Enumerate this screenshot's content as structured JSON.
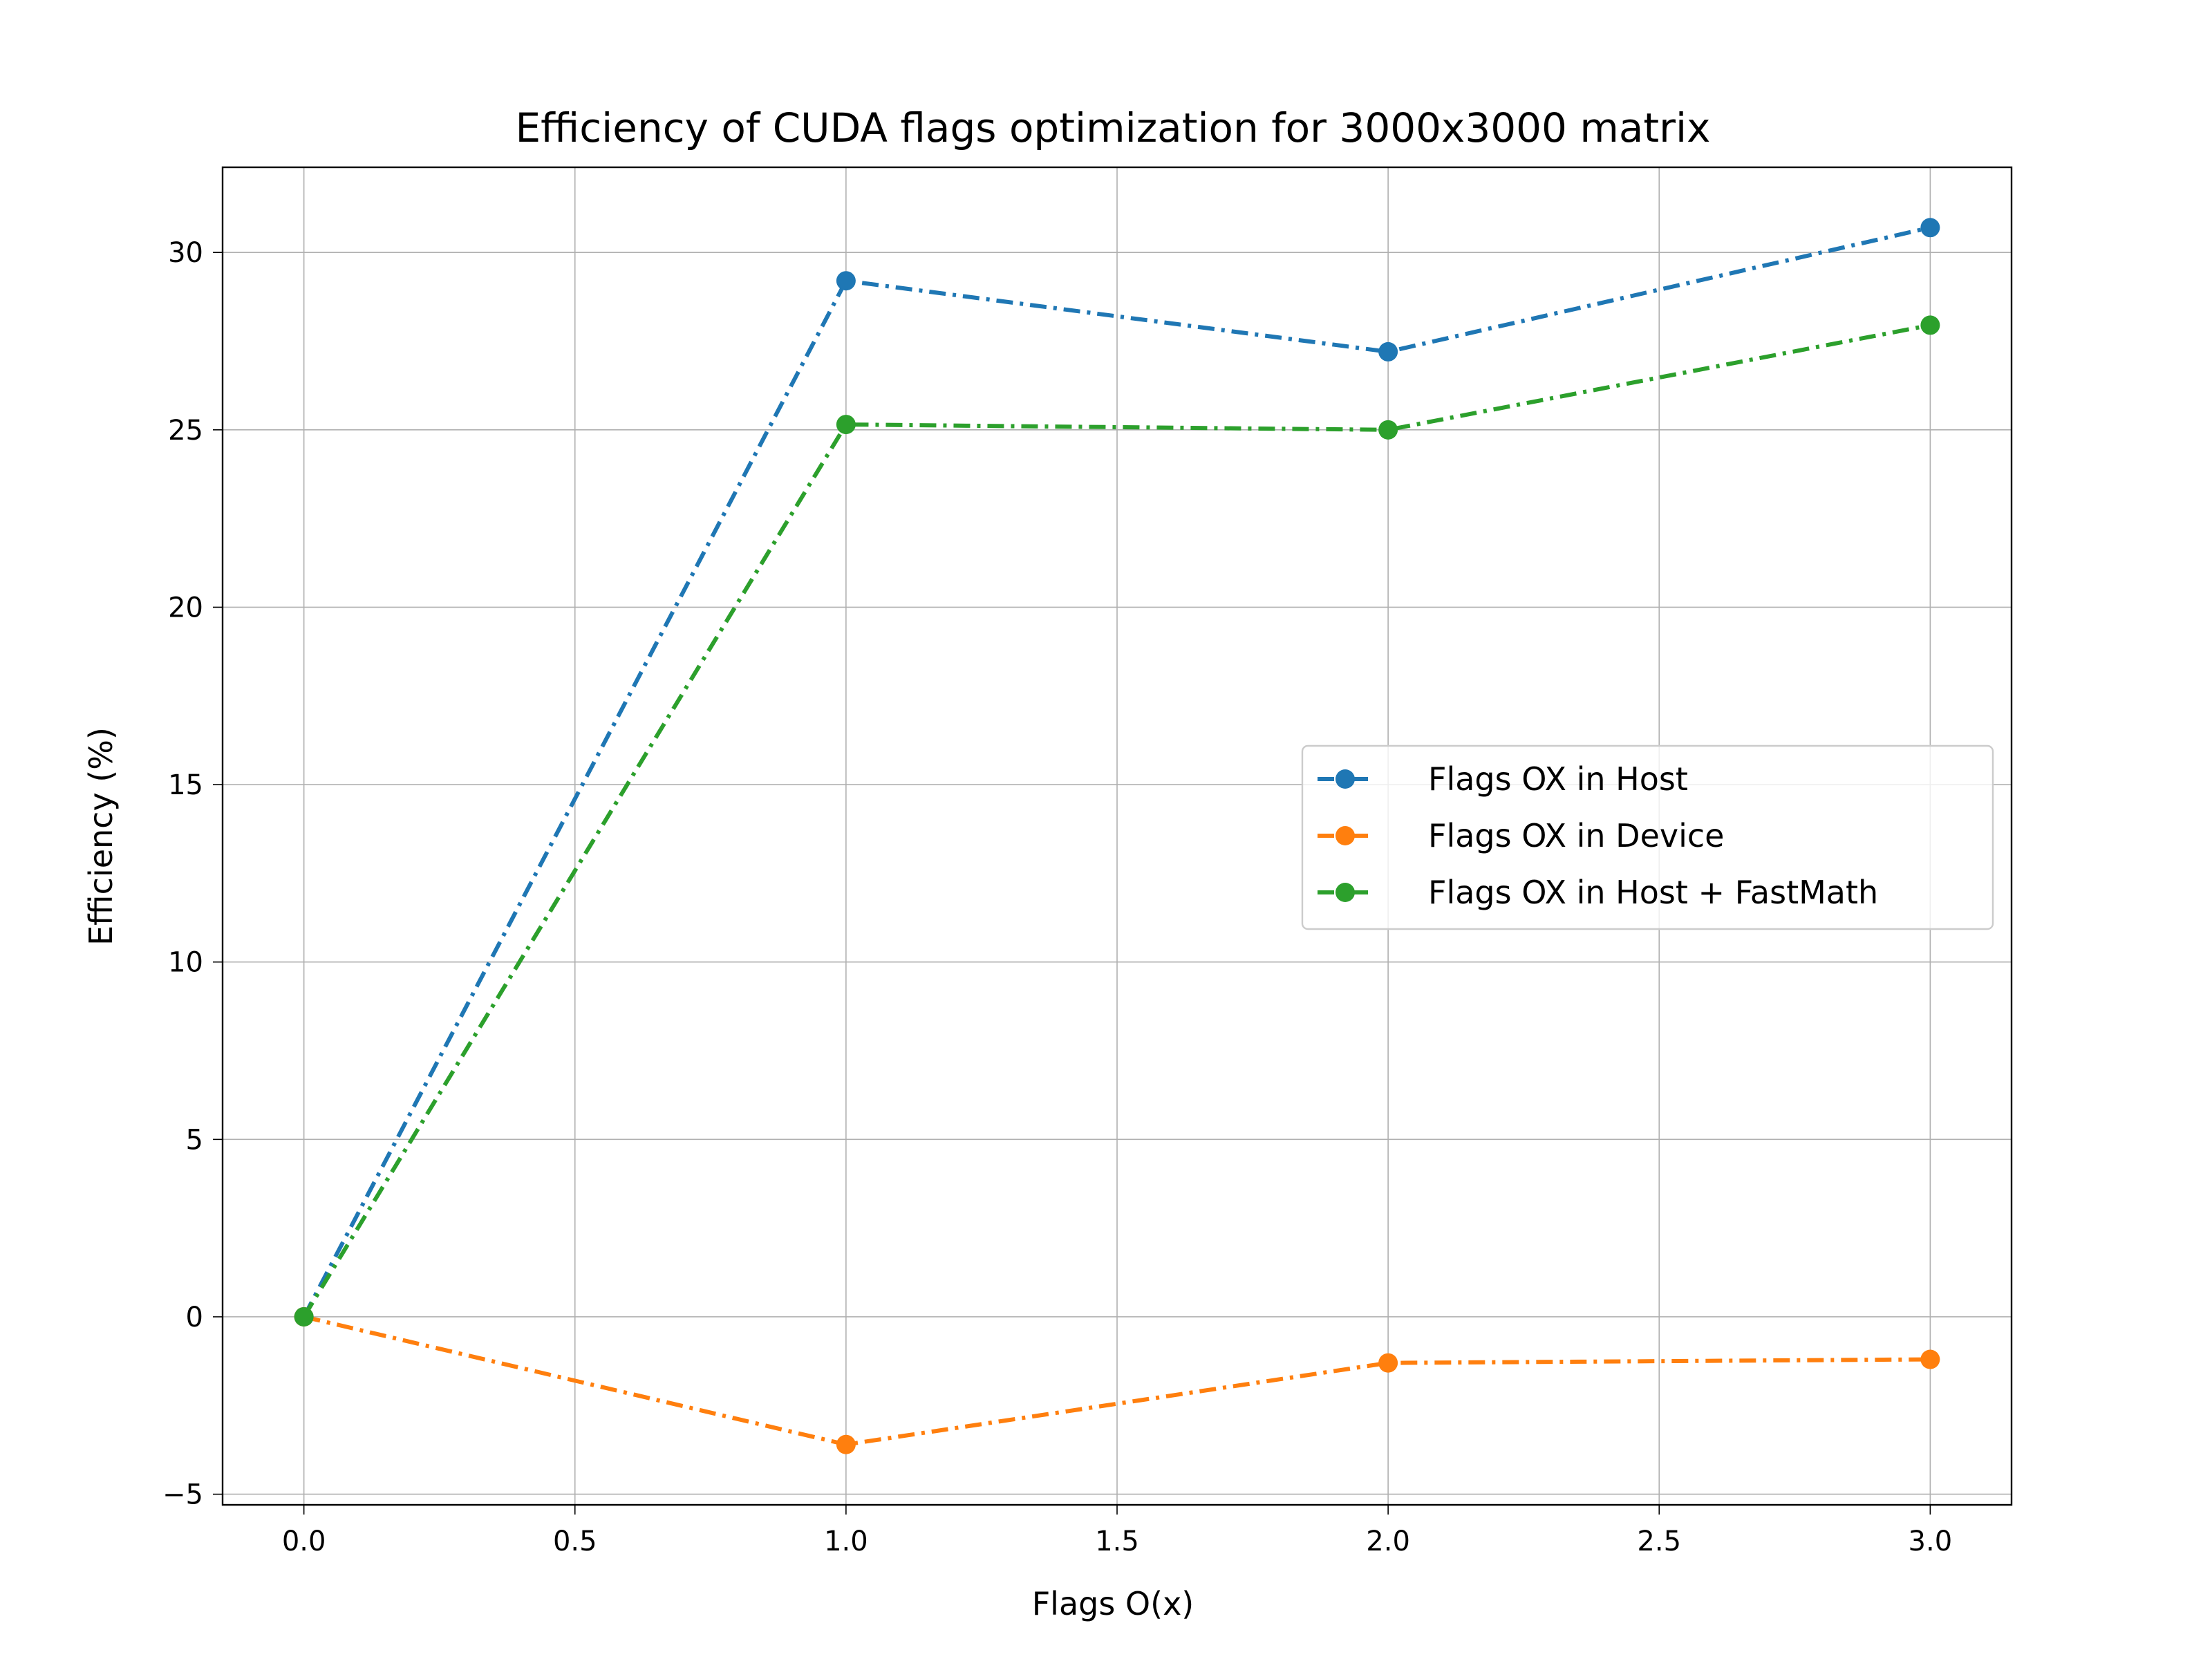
{
  "chart_data": {
    "type": "line",
    "title": "Efficiency of CUDA flags optimization for 3000x3000 matrix",
    "xlabel": "Flags O(x)",
    "ylabel": "Efficiency (%)",
    "x": [
      0.0,
      1.0,
      2.0,
      3.0
    ],
    "xlim": [
      -0.15,
      3.15
    ],
    "ylim": [
      -5.3,
      32.4
    ],
    "xticks": [
      0.0,
      0.5,
      1.0,
      1.5,
      2.0,
      2.5,
      3.0
    ],
    "xtick_labels": [
      "0.0",
      "0.5",
      "1.0",
      "1.5",
      "2.0",
      "2.5",
      "3.0"
    ],
    "yticks": [
      -5,
      0,
      5,
      10,
      15,
      20,
      25,
      30
    ],
    "ytick_labels": [
      "−5",
      "0",
      "5",
      "10",
      "15",
      "20",
      "25",
      "30"
    ],
    "grid": true,
    "legend_position": "center-right",
    "line_style": "dash-dot",
    "series": [
      {
        "name": "Flags OX in Host",
        "color": "#1f77b4",
        "values": [
          0.0,
          29.2,
          27.2,
          30.7
        ]
      },
      {
        "name": "Flags OX in Device",
        "color": "#ff7f0e",
        "values": [
          0.0,
          -3.6,
          -1.3,
          -1.2
        ]
      },
      {
        "name": "Flags OX in Host + FastMath",
        "color": "#2ca02c",
        "values": [
          0.0,
          25.15,
          25.0,
          27.95
        ]
      }
    ]
  }
}
